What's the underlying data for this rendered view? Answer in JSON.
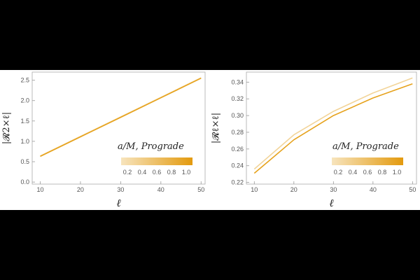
{
  "chart_data": [
    {
      "type": "line",
      "xlabel": "ℓ",
      "ylabel": "|𝓡2×ℓ|",
      "xlim": [
        8,
        51
      ],
      "ylim": [
        -0.05,
        2.7
      ],
      "xticks": [
        "10",
        "20",
        "30",
        "40",
        "50"
      ],
      "yticks": [
        "0.0",
        "0.5",
        "1.0",
        "1.5",
        "2.0",
        "2.5"
      ],
      "ytick_values": [
        0.0,
        0.5,
        1.0,
        1.5,
        2.0,
        2.5
      ],
      "xtick_values": [
        10,
        20,
        30,
        40,
        50
      ],
      "x": [
        10,
        20,
        30,
        40,
        50
      ],
      "series": [
        {
          "values": [
            0.64,
            1.12,
            1.6,
            2.08,
            2.56
          ],
          "color": "#f2d499"
        },
        {
          "values": [
            0.63,
            1.11,
            1.59,
            2.07,
            2.55
          ],
          "color": "#e6a21c"
        }
      ],
      "legend_title": "a/M, Prograde",
      "colorbar_ticks": [
        "0.2",
        "0.4",
        "0.6",
        "0.8",
        "1.0"
      ],
      "colorbar_colors": [
        "#f7e4bd",
        "#e39a0e"
      ]
    },
    {
      "type": "line",
      "xlabel": "ℓ",
      "ylabel": "|𝓡ℓ×ℓ|",
      "xlim": [
        8,
        51
      ],
      "ylim": [
        0.218,
        0.352
      ],
      "xticks": [
        "10",
        "20",
        "30",
        "40",
        "50"
      ],
      "yticks": [
        "0.22",
        "0.24",
        "0.26",
        "0.28",
        "0.30",
        "0.32",
        "0.34"
      ],
      "ytick_values": [
        0.22,
        0.24,
        0.26,
        0.28,
        0.3,
        0.32,
        0.34
      ],
      "xtick_values": [
        10,
        20,
        30,
        40,
        50
      ],
      "x": [
        10,
        20,
        30,
        40,
        50
      ],
      "series": [
        {
          "values": [
            0.236,
            0.277,
            0.305,
            0.327,
            0.345
          ],
          "color": "#f2d499"
        },
        {
          "values": [
            0.231,
            0.271,
            0.3,
            0.321,
            0.338
          ],
          "color": "#e6a21c"
        }
      ],
      "legend_title": "a/M, Prograde",
      "colorbar_ticks": [
        "0.2",
        "0.4",
        "0.6",
        "0.8",
        "1.0"
      ],
      "colorbar_colors": [
        "#f7e4bd",
        "#e39a0e"
      ]
    }
  ]
}
